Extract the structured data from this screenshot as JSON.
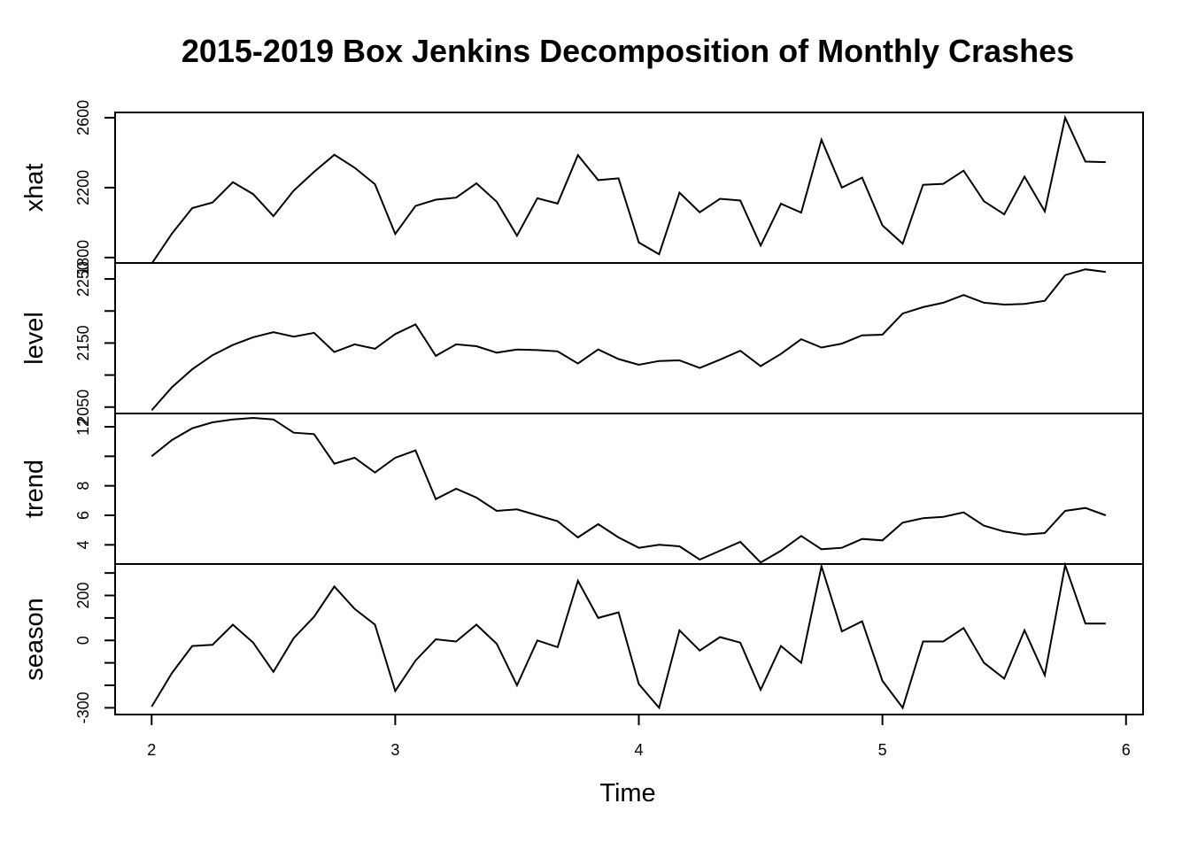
{
  "chart_data": {
    "type": "line",
    "title": "2015-2019 Box Jenkins Decomposition of Monthly Crashes",
    "xlabel": "Time",
    "xlim": [
      1.85,
      6.07
    ],
    "x_ticks": [
      2,
      3,
      4,
      5,
      6
    ],
    "x_tick_labels": [
      "2",
      "3",
      "4",
      "5",
      "6"
    ],
    "x": [
      2.0,
      2.0833,
      2.1667,
      2.25,
      2.3333,
      2.4167,
      2.5,
      2.5833,
      2.6667,
      2.75,
      2.8333,
      2.9167,
      3.0,
      3.0833,
      3.1667,
      3.25,
      3.3333,
      3.4167,
      3.5,
      3.5833,
      3.6667,
      3.75,
      3.8333,
      3.9167,
      4.0,
      4.0833,
      4.1667,
      4.25,
      4.3333,
      4.4167,
      4.5,
      4.5833,
      4.6667,
      4.75,
      4.8333,
      4.9167,
      5.0,
      5.0833,
      5.1667,
      5.25,
      5.3333,
      5.4167,
      5.5,
      5.5833,
      5.6667,
      5.75,
      5.8333,
      5.9167
    ],
    "series": [
      {
        "name": "xhat",
        "ylim": [
          1769,
          2630
        ],
        "y_ticks": [
          1800,
          2200,
          2600
        ],
        "y_tick_labels": [
          "1800",
          "2200",
          "2600"
        ],
        "values": [
          1765,
          1937,
          2083,
          2115,
          2231,
          2163,
          2037,
          2183,
          2290,
          2388,
          2314,
          2219,
          1935,
          2095,
          2131,
          2143,
          2225,
          2119,
          1925,
          2139,
          2109,
          2386,
          2243,
          2253,
          1886,
          1819,
          2171,
          2059,
          2136,
          2126,
          1869,
          2108,
          2057,
          2474,
          2200,
          2257,
          1984,
          1879,
          2216,
          2222,
          2297,
          2122,
          2047,
          2263,
          2064,
          2600,
          2349,
          2346
        ]
      },
      {
        "name": "level",
        "ylim": [
          2040,
          2275
        ],
        "y_ticks": [
          2050,
          2100,
          2150,
          2200,
          2250
        ],
        "y_tick_labels": [
          "2050",
          "",
          "2150",
          "",
          "2250"
        ],
        "values": [
          2045,
          2081,
          2109,
          2131,
          2147,
          2159,
          2167,
          2160,
          2166,
          2136,
          2148,
          2141,
          2164,
          2179,
          2130,
          2148,
          2145,
          2135,
          2140,
          2139,
          2137,
          2118,
          2140,
          2125,
          2116,
          2122,
          2123,
          2111,
          2124,
          2138,
          2114,
          2133,
          2156,
          2143,
          2149,
          2162,
          2163,
          2196,
          2206,
          2213,
          2225,
          2213,
          2210,
          2211,
          2216,
          2256,
          2265,
          2261
        ]
      },
      {
        "name": "trend",
        "ylim": [
          2.7,
          12.9
        ],
        "y_ticks": [
          4,
          6,
          8,
          10,
          12
        ],
        "y_tick_labels": [
          "4",
          "6",
          "8",
          "",
          "12"
        ],
        "values": [
          10.0,
          11.1,
          11.9,
          12.3,
          12.5,
          12.6,
          12.5,
          11.6,
          11.5,
          9.5,
          9.9,
          8.9,
          9.9,
          10.4,
          7.1,
          7.8,
          7.2,
          6.3,
          6.4,
          6.0,
          5.6,
          4.5,
          5.4,
          4.5,
          3.8,
          4.0,
          3.9,
          3.0,
          3.6,
          4.2,
          2.8,
          3.6,
          4.6,
          3.7,
          3.8,
          4.4,
          4.3,
          5.5,
          5.8,
          5.9,
          6.2,
          5.3,
          4.9,
          4.7,
          4.8,
          6.3,
          6.5,
          6.0
        ]
      },
      {
        "name": "season",
        "ylim": [
          -330,
          340
        ],
        "y_ticks": [
          -300,
          -200,
          -100,
          0,
          100,
          200,
          300
        ],
        "y_tick_labels": [
          "-300",
          "",
          "",
          "0",
          "",
          "200",
          ""
        ],
        "values": [
          -295,
          -145,
          -25,
          -20,
          70,
          -10,
          -140,
          10,
          105,
          240,
          140,
          70,
          -225,
          -90,
          5,
          -5,
          70,
          -15,
          -200,
          0,
          -30,
          265,
          100,
          125,
          -195,
          -300,
          45,
          -45,
          15,
          -10,
          -220,
          -25,
          -100,
          330,
          40,
          85,
          -180,
          -300,
          -5,
          -5,
          55,
          -100,
          -170,
          45,
          -155,
          335,
          75,
          75
        ]
      }
    ]
  }
}
